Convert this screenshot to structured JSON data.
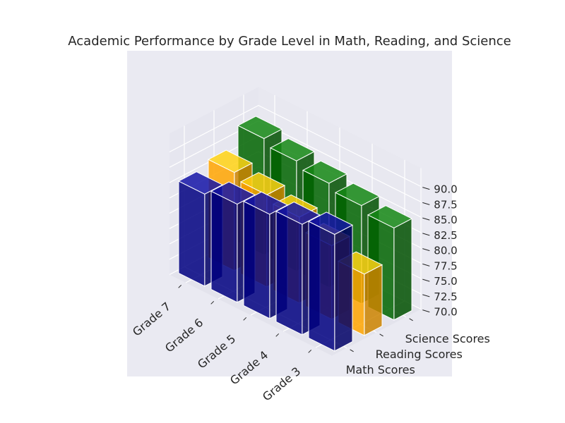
{
  "chart_data": {
    "type": "bar3d",
    "title": "Academic Performance by Grade Level in Math, Reading, and Science",
    "categories": [
      "Grade 3",
      "Grade 4",
      "Grade 5",
      "Grade 6",
      "Grade 7"
    ],
    "series": [
      {
        "name": "Math Scores",
        "color": "#000080",
        "values": [
          89,
          88,
          87,
          86,
          85
        ]
      },
      {
        "name": "Reading Scores",
        "color": "#FFA500",
        "values": [
          80,
          82,
          84,
          85,
          86
        ]
      },
      {
        "name": "Science Scores",
        "color": "#006400",
        "values": [
          85,
          86,
          87,
          88,
          89
        ]
      }
    ],
    "zlim": [
      70,
      90
    ],
    "zticks": [
      "70.0",
      "72.5",
      "75.0",
      "77.5",
      "80.0",
      "82.5",
      "85.0",
      "87.5",
      "90.0"
    ],
    "grid": true,
    "colors": {
      "pane": "#EAEAF2",
      "grid": "#FFFFFF",
      "text": "#262626"
    }
  }
}
